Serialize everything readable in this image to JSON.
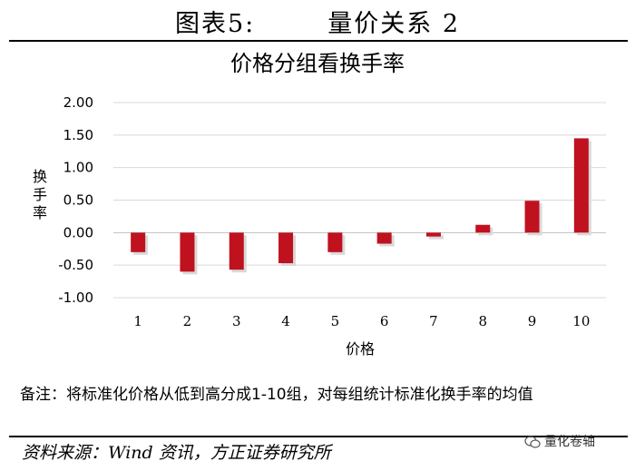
{
  "figure": {
    "label": "图表5:",
    "title": "量价关系 2"
  },
  "note": "备注：将标准化价格从低到高分成1-10组，对每组统计标准化换手率的均值",
  "source": "资料来源：Wind 资讯，方正证券研究所",
  "watermark": "量化卷轴",
  "colors": {
    "bar": "#c0111f",
    "bar_shadow": "#d9d9d9",
    "grid": "#d9d9d9",
    "axis": "#bfbfbf"
  },
  "chart_data": {
    "type": "bar",
    "title": "价格分组看换手率",
    "xlabel": "价格",
    "ylabel": "换手率",
    "categories": [
      "1",
      "2",
      "3",
      "4",
      "5",
      "6",
      "7",
      "8",
      "9",
      "10"
    ],
    "values": [
      -0.3,
      -0.6,
      -0.57,
      -0.47,
      -0.3,
      -0.17,
      -0.06,
      0.12,
      0.49,
      1.45
    ],
    "ylim": [
      -1.0,
      2.0
    ],
    "yticks": [
      "2.00",
      "1.50",
      "1.00",
      "0.50",
      "0.00",
      "-0.50",
      "-1.00"
    ],
    "ytick_values": [
      2.0,
      1.5,
      1.0,
      0.5,
      0.0,
      -0.5,
      -1.0
    ],
    "grid": true,
    "legend": "none"
  }
}
